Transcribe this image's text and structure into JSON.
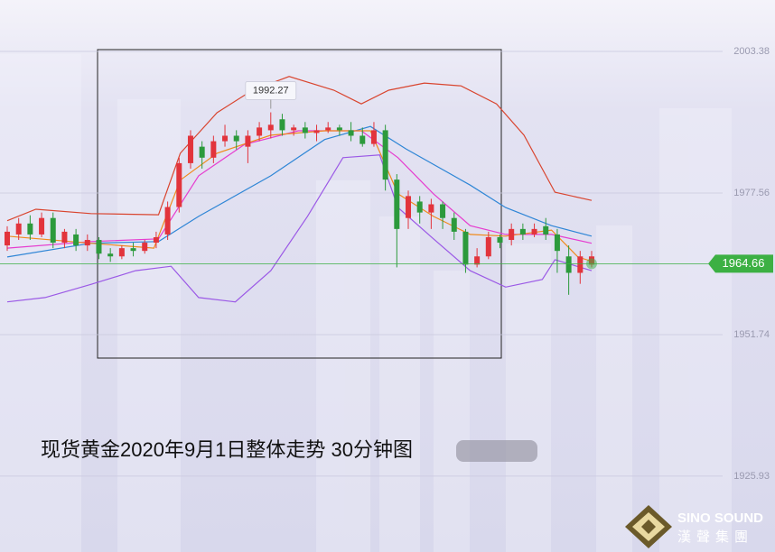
{
  "chart_data": {
    "type": "candlestick",
    "title": "现货黄金2020年9月1日整体走势 30分钟图",
    "open": [
      1968,
      1970,
      1972,
      1970,
      1973,
      1968.5,
      1970,
      1968,
      1969,
      1966.5,
      1966,
      1967.5,
      1967,
      1968.5,
      1970,
      1975,
      1983,
      1986,
      1984,
      1987,
      1988,
      1986,
      1988,
      1989,
      1991,
      1989,
      1989.5,
      1988.5,
      1989,
      1989.5,
      1989,
      1988,
      1986.5,
      1989,
      1980,
      1973,
      1976,
      1974,
      1975.5,
      1973,
      1970.5,
      1964.5,
      1966,
      1969.5,
      1969,
      1971,
      1970,
      1971.5,
      1970,
      1966,
      1963,
      1964.5
    ],
    "high": [
      1971.5,
      1973,
      1973.5,
      1974,
      1974,
      1971,
      1971,
      1970,
      1969.5,
      1967.5,
      1968,
      1968.5,
      1969,
      1970.5,
      1976,
      1984,
      1989,
      1987,
      1988,
      1990,
      1989,
      1989,
      1990.5,
      1992.27,
      1992,
      1990,
      1990.5,
      1990,
      1990.5,
      1990,
      1990.5,
      1989.5,
      1990.5,
      1990,
      1981,
      1978,
      1977,
      1976.5,
      1976,
      1974,
      1971,
      1967.5,
      1970.5,
      1970,
      1972,
      1972,
      1972,
      1973,
      1971,
      1968,
      1967,
      1967
    ],
    "low": [
      1967,
      1969,
      1969,
      1969.5,
      1967.5,
      1967.5,
      1967,
      1967,
      1965.5,
      1965,
      1965.5,
      1966,
      1966.5,
      1967.5,
      1969,
      1974,
      1982,
      1982,
      1983,
      1986,
      1985.5,
      1983,
      1987,
      1987.5,
      1988,
      1988,
      1987.5,
      1987,
      1988.5,
      1988,
      1987,
      1986,
      1986,
      1978,
      1964,
      1971,
      1972,
      1971,
      1971,
      1969,
      1963,
      1964,
      1965.5,
      1967.5,
      1968,
      1969,
      1969.5,
      1969,
      1963,
      1959,
      1961,
      1964
    ],
    "close": [
      1970.5,
      1972,
      1970,
      1973,
      1968.5,
      1970.5,
      1968,
      1969,
      1966.5,
      1966,
      1967.5,
      1967,
      1968.5,
      1969.5,
      1975,
      1983,
      1988,
      1984,
      1987,
      1988,
      1987,
      1988,
      1989.5,
      1990,
      1989,
      1989.5,
      1988.5,
      1989,
      1989.5,
      1989,
      1988,
      1986.5,
      1989,
      1980,
      1971,
      1977,
      1974,
      1975.5,
      1973,
      1970.5,
      1964.5,
      1966,
      1969.5,
      1968.5,
      1971,
      1970,
      1971,
      1970,
      1967,
      1963,
      1966,
      1966
    ],
    "up_color": "#e2343c",
    "down_color": "#2c9a3c",
    "lines": [
      {
        "color": "#d9452f",
        "x": [
          0,
          2.5,
          7.3,
          13.2,
          15.1,
          18.3,
          21.4,
          24.6,
          28.5,
          30.9,
          33.3,
          36.4,
          39.6,
          42.7,
          45.1,
          47.8,
          51
        ],
        "values": [
          1972.5,
          1974.6,
          1973.8,
          1973.6,
          1984.8,
          1992.2,
          1996.3,
          1998.8,
          1996.3,
          1993.8,
          1996.3,
          1997.6,
          1997.1,
          1993.8,
          1988.1,
          1977.7,
          1976.2
        ]
      },
      {
        "color": "#9b59e6",
        "x": [
          0,
          3.3,
          7.3,
          11.2,
          14.3,
          16.7,
          19.9,
          23.0,
          26.2,
          29.3,
          32.5,
          34.1,
          37.2,
          40.4,
          43.5,
          46.7,
          47.8,
          51
        ],
        "values": [
          1957.7,
          1958.5,
          1960.9,
          1963.4,
          1964.2,
          1958.5,
          1957.7,
          1963.4,
          1973.3,
          1984.0,
          1984.5,
          1974.9,
          1969.2,
          1963.4,
          1960.4,
          1961.8,
          1965.4,
          1963.4
        ]
      },
      {
        "color": "#2f86d6",
        "x": [
          0,
          7.3,
          13.2,
          16.7,
          23.0,
          27.7,
          31.7,
          34.8,
          40.4,
          43.5,
          47.5,
          51
        ],
        "values": [
          1965.9,
          1968.4,
          1968.7,
          1973.3,
          1980.7,
          1987.3,
          1989.7,
          1985.6,
          1979.0,
          1974.9,
          1971.6,
          1969.7
        ]
      },
      {
        "color": "#e63ccf",
        "x": [
          0,
          7.3,
          13.2,
          16.7,
          20.7,
          25.4,
          30.9,
          34.1,
          37.2,
          40.4,
          43.5,
          47.5,
          51
        ],
        "values": [
          1967.5,
          1968.7,
          1969.2,
          1980.7,
          1986.4,
          1988.9,
          1988.9,
          1984.0,
          1977.4,
          1971.6,
          1970.0,
          1970.0,
          1968.4
        ]
      },
      {
        "color": "#f08a1c",
        "x": [
          0,
          7.3,
          12.8,
          15.1,
          18.3,
          23.0,
          27.7,
          31.7,
          34.1,
          37.2,
          40.4,
          43.5,
          47.5,
          49.8,
          51
        ],
        "values": [
          1969.7,
          1968.4,
          1967.5,
          1979.9,
          1984.8,
          1988.1,
          1988.9,
          1988.9,
          1977.4,
          1973.3,
          1970.0,
          1969.7,
          1970.8,
          1965.9,
          1965.1
        ]
      }
    ],
    "ylim": [
      1912.1,
      2012.75
    ],
    "yticks": [
      2003.38,
      1977.56,
      1951.74,
      1925.93
    ],
    "last_price": 1964.66,
    "last_price_color": "#3cb043",
    "callout_index": 23
  },
  "logo": {
    "en": "SINO SOUND",
    "zh": "漢聲集團"
  }
}
